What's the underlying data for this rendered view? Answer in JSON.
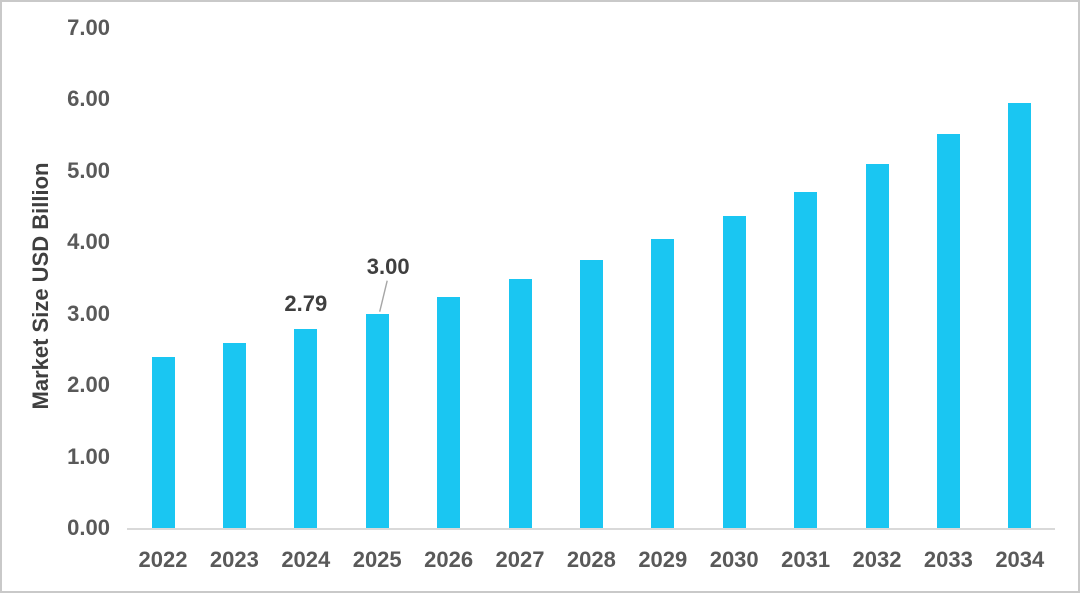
{
  "chart_data": {
    "type": "bar",
    "ylabel": "Market Size USD Billion",
    "categories": [
      "2022",
      "2023",
      "2024",
      "2025",
      "2026",
      "2027",
      "2028",
      "2029",
      "2030",
      "2031",
      "2032",
      "2033",
      "2034"
    ],
    "values": [
      2.4,
      2.59,
      2.79,
      3.0,
      3.24,
      3.48,
      3.75,
      4.05,
      4.37,
      4.71,
      5.09,
      5.51,
      5.95
    ],
    "data_labels": [
      {
        "category": "2024",
        "text": "2.79",
        "has_leader_line": false
      },
      {
        "category": "2025",
        "text": "3.00",
        "has_leader_line": true
      }
    ],
    "ylim": [
      0,
      7
    ],
    "ytick_interval": 1,
    "yticks": [
      "0.00",
      "1.00",
      "2.00",
      "3.00",
      "4.00",
      "5.00",
      "6.00",
      "7.00"
    ],
    "grid": "off",
    "legend": "none",
    "colors": {
      "bar": "#1ac6f2",
      "axis_line": "#d9d9d9",
      "tick_label": "#595959",
      "data_label": "#3f3f3f",
      "axis_title": "#3f3f3f",
      "leader_line": "#a6a6a6",
      "background": "#ffffff",
      "frame_border": "#c9c9c9"
    }
  }
}
